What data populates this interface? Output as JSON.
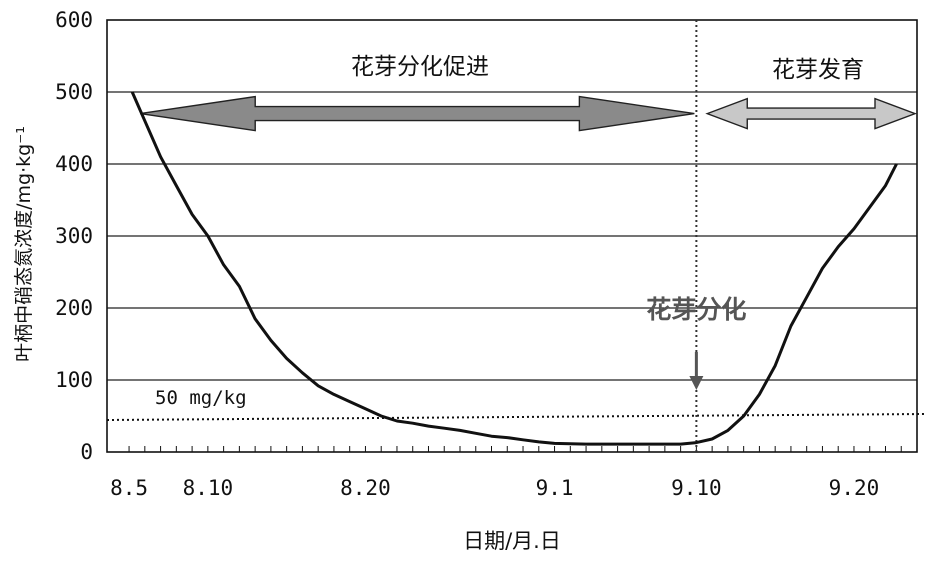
{
  "chart_data": {
    "type": "line",
    "title": "",
    "xlabel": "日期/月.日",
    "ylabel": "叶柄中硝态氮浓度/mg·kg⁻¹",
    "ylim": [
      0,
      600
    ],
    "yticks": [
      0,
      100,
      200,
      300,
      400,
      500,
      600
    ],
    "xticks": [
      {
        "label": "8.5",
        "day": 5
      },
      {
        "label": "8.10",
        "day": 10
      },
      {
        "label": "8.20",
        "day": 20
      },
      {
        "label": "9.1",
        "day": 32
      },
      {
        "label": "9.10",
        "day": 41
      },
      {
        "label": "9.20",
        "day": 51
      }
    ],
    "grid": true,
    "series": [
      {
        "values": [
          {
            "day": 5.2,
            "y": 500
          },
          {
            "day": 6,
            "y": 460
          },
          {
            "day": 7,
            "y": 410
          },
          {
            "day": 8,
            "y": 370
          },
          {
            "day": 9,
            "y": 330
          },
          {
            "day": 10,
            "y": 300
          },
          {
            "day": 11,
            "y": 260
          },
          {
            "day": 12,
            "y": 230
          },
          {
            "day": 13,
            "y": 185
          },
          {
            "day": 14,
            "y": 155
          },
          {
            "day": 15,
            "y": 130
          },
          {
            "day": 16,
            "y": 110
          },
          {
            "day": 17,
            "y": 92
          },
          {
            "day": 18,
            "y": 80
          },
          {
            "day": 19,
            "y": 70
          },
          {
            "day": 20,
            "y": 60
          },
          {
            "day": 21,
            "y": 50
          },
          {
            "day": 22,
            "y": 43
          },
          {
            "day": 23,
            "y": 40
          },
          {
            "day": 24,
            "y": 36
          },
          {
            "day": 25,
            "y": 33
          },
          {
            "day": 26,
            "y": 30
          },
          {
            "day": 27,
            "y": 26
          },
          {
            "day": 28,
            "y": 22
          },
          {
            "day": 29,
            "y": 20
          },
          {
            "day": 30,
            "y": 17
          },
          {
            "day": 31,
            "y": 14
          },
          {
            "day": 32,
            "y": 12
          },
          {
            "day": 34,
            "y": 11
          },
          {
            "day": 36,
            "y": 11
          },
          {
            "day": 38,
            "y": 11
          },
          {
            "day": 40,
            "y": 11
          },
          {
            "day": 41,
            "y": 13
          },
          {
            "day": 42,
            "y": 18
          },
          {
            "day": 43,
            "y": 30
          },
          {
            "day": 44,
            "y": 50
          },
          {
            "day": 45,
            "y": 80
          },
          {
            "day": 46,
            "y": 120
          },
          {
            "day": 47,
            "y": 175
          },
          {
            "day": 48,
            "y": 215
          },
          {
            "day": 49,
            "y": 255
          },
          {
            "day": 50,
            "y": 285
          },
          {
            "day": 51,
            "y": 310
          },
          {
            "day": 52,
            "y": 340
          },
          {
            "day": 53,
            "y": 370
          },
          {
            "day": 53.7,
            "y": 400
          }
        ]
      }
    ],
    "reference_line": {
      "y": 50,
      "label": "50 mg/kg"
    },
    "phase_marker": {
      "day": 41,
      "label": "花芽分化"
    },
    "phases": [
      {
        "label": "花芽分化促进",
        "start_day": 5.2,
        "end_day": 41,
        "y": 470
      },
      {
        "label": "花芽发育",
        "start_day": 41.5,
        "end_day": 55,
        "y": 470
      }
    ]
  },
  "colors": {
    "line": "#111111",
    "grid": "#222222",
    "arrow_dark": "#8a8a8a",
    "arrow_light": "#c8c8c8",
    "marker_text": "#555555"
  }
}
